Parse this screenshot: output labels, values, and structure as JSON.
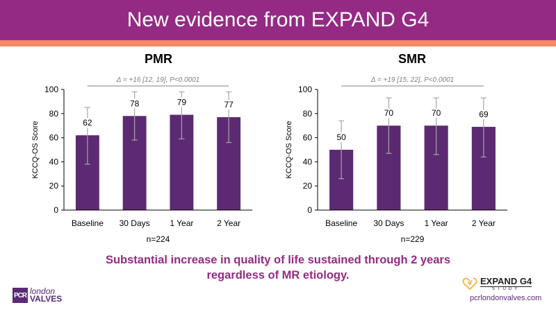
{
  "slide": {
    "title": "New evidence from EXPAND G4",
    "takeaway": "Substantial increase in quality of life sustained through 2 years regardless of MR etiology.",
    "brand_colors": {
      "header": "#952a85",
      "accent_band": "#f5896a",
      "bar": "#5c2a72",
      "error_bar": "#a6a6a6"
    },
    "logos": {
      "pcr_box": "PCR",
      "pcr_line1": "london",
      "pcr_line2": "VALVES",
      "expand_name": "EXPAND G4",
      "expand_sub": "STUDY",
      "expand_icon": "heart-check-icon",
      "url": "pcrlondonvalves.com"
    }
  },
  "chart_data": [
    {
      "type": "bar",
      "title": "PMR",
      "annotation": "Δ = +16 [12, 19], P<0.0001",
      "categories": [
        "Baseline",
        "30 Days",
        "1 Year",
        "2 Year"
      ],
      "values": [
        62,
        78,
        79,
        77
      ],
      "error_low": [
        38,
        58,
        59,
        56
      ],
      "error_high": [
        85,
        98,
        98,
        98
      ],
      "data_labels": [
        "62",
        "78",
        "79",
        "77"
      ],
      "xlabel": "n=224",
      "ylabel": "KCCQ-OS Score",
      "ylim": [
        0,
        100
      ],
      "yticks": [
        0,
        20,
        40,
        60,
        80,
        100
      ],
      "grid": false
    },
    {
      "type": "bar",
      "title": "SMR",
      "annotation": "Δ = +19 [15, 22], P<0.0001",
      "categories": [
        "Baseline",
        "30 Days",
        "1 Year",
        "2 Year"
      ],
      "values": [
        50,
        70,
        70,
        69
      ],
      "error_low": [
        26,
        47,
        46,
        44
      ],
      "error_high": [
        74,
        93,
        93,
        93
      ],
      "data_labels": [
        "50",
        "70",
        "70",
        "69"
      ],
      "xlabel": "n=229",
      "ylabel": "KCCQ-OS Score",
      "ylim": [
        0,
        100
      ],
      "yticks": [
        0,
        20,
        40,
        60,
        80,
        100
      ],
      "grid": false
    }
  ]
}
